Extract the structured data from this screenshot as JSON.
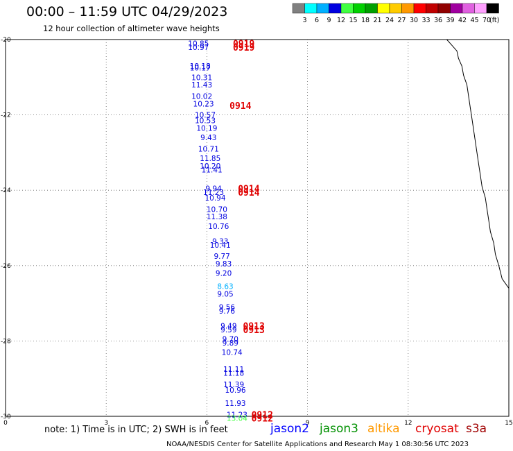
{
  "header": {
    "title": "00:00 – 11:59 UTC 04/29/2023",
    "subtitle": "12 hour collection of altimeter wave heights"
  },
  "footer": {
    "note": "note: 1) Time is in UTC; 2) SWH is in feet",
    "credit": "NOAA/NESDIS Center for Satellite Applications and Research    May  1 08:30:56 UTC 2023"
  },
  "legend": {
    "unit": "(ft)",
    "bins": [
      {
        "label": "3",
        "color": "#808080"
      },
      {
        "label": "6",
        "color": "#00ffff"
      },
      {
        "label": "9",
        "color": "#00b0ff"
      },
      {
        "label": "12",
        "color": "#0000e0"
      },
      {
        "label": "15",
        "color": "#40ff40"
      },
      {
        "label": "18",
        "color": "#00d000"
      },
      {
        "label": "21",
        "color": "#00a000"
      },
      {
        "label": "24",
        "color": "#ffff00"
      },
      {
        "label": "27",
        "color": "#ffcc00"
      },
      {
        "label": "30",
        "color": "#ff9900"
      },
      {
        "label": "33",
        "color": "#ff0000"
      },
      {
        "label": "36",
        "color": "#c00000"
      },
      {
        "label": "39",
        "color": "#900000"
      },
      {
        "label": "42",
        "color": "#a000a0"
      },
      {
        "label": "45",
        "color": "#e060e0"
      },
      {
        "label": "70",
        "color": "#ffa0ff"
      },
      {
        "label": "",
        "color": "#000000"
      }
    ]
  },
  "missions": [
    {
      "name": "jason2",
      "color": "#0000ff"
    },
    {
      "name": "jason3",
      "color": "#009000"
    },
    {
      "name": "altika",
      "color": "#ff9900"
    },
    {
      "name": "cryosat",
      "color": "#e00000"
    },
    {
      "name": "s3a",
      "color": "#a00000"
    }
  ],
  "chart_data": {
    "type": "scatter",
    "x_range": [
      0,
      15
    ],
    "y_range": [
      -30,
      -20
    ],
    "x_ticks": [
      "0",
      "3",
      "6",
      "9",
      "12",
      "15"
    ],
    "y_ticks": [
      "-20",
      "-22",
      "-24",
      "-26",
      "-28",
      "-30"
    ],
    "grid": true,
    "points": [
      {
        "x": 5.75,
        "y": -20.1,
        "label": "10.85",
        "color": "#0000e0"
      },
      {
        "x": 5.75,
        "y": -20.2,
        "label": "10.97",
        "color": "#0000e0"
      },
      {
        "x": 5.8,
        "y": -20.7,
        "label": "10.18",
        "color": "#0000e0"
      },
      {
        "x": 5.8,
        "y": -20.75,
        "label": "10.17",
        "color": "#0000e0"
      },
      {
        "x": 5.85,
        "y": -21.0,
        "label": "10.31",
        "color": "#0000e0"
      },
      {
        "x": 5.85,
        "y": -21.2,
        "label": "11.43",
        "color": "#0000e0"
      },
      {
        "x": 5.85,
        "y": -21.5,
        "label": "10.02",
        "color": "#0000e0"
      },
      {
        "x": 5.9,
        "y": -21.7,
        "label": "10.23",
        "color": "#0000e0"
      },
      {
        "x": 5.95,
        "y": -22.0,
        "label": "10.57",
        "color": "#0000e0"
      },
      {
        "x": 5.95,
        "y": -22.15,
        "label": "10.53",
        "color": "#0000e0"
      },
      {
        "x": 6.0,
        "y": -22.35,
        "label": "10.19",
        "color": "#0000e0"
      },
      {
        "x": 6.05,
        "y": -22.6,
        "label": "9.43",
        "color": "#0000e0"
      },
      {
        "x": 6.05,
        "y": -22.9,
        "label": "10.71",
        "color": "#0000e0"
      },
      {
        "x": 6.1,
        "y": -23.15,
        "label": "11.85",
        "color": "#0000e0"
      },
      {
        "x": 6.1,
        "y": -23.35,
        "label": "10.20",
        "color": "#0000e0"
      },
      {
        "x": 6.15,
        "y": -23.45,
        "label": "11.41",
        "color": "#0000e0"
      },
      {
        "x": 6.2,
        "y": -23.95,
        "label": "9.94",
        "color": "#0000e0"
      },
      {
        "x": 6.2,
        "y": -24.05,
        "label": "11.23",
        "color": "#0000e0"
      },
      {
        "x": 6.25,
        "y": -24.2,
        "label": "10.94",
        "color": "#0000e0"
      },
      {
        "x": 6.3,
        "y": -24.5,
        "label": "10.70",
        "color": "#0000e0"
      },
      {
        "x": 6.3,
        "y": -24.7,
        "label": "11.38",
        "color": "#0000e0"
      },
      {
        "x": 6.35,
        "y": -24.95,
        "label": "10.76",
        "color": "#0000e0"
      },
      {
        "x": 6.4,
        "y": -25.35,
        "label": "9.33",
        "color": "#0000e0"
      },
      {
        "x": 6.4,
        "y": -25.45,
        "label": "10.41",
        "color": "#0000e0"
      },
      {
        "x": 6.45,
        "y": -25.75,
        "label": "9.77",
        "color": "#0000e0"
      },
      {
        "x": 6.5,
        "y": -25.95,
        "label": "9.83",
        "color": "#0000e0"
      },
      {
        "x": 6.5,
        "y": -26.2,
        "label": "9.20",
        "color": "#0000e0"
      },
      {
        "x": 6.55,
        "y": -26.55,
        "label": "8.63",
        "color": "#00b0ff"
      },
      {
        "x": 6.55,
        "y": -26.75,
        "label": "9.05",
        "color": "#0000e0"
      },
      {
        "x": 6.6,
        "y": -27.1,
        "label": "9.56",
        "color": "#0000e0"
      },
      {
        "x": 6.6,
        "y": -27.2,
        "label": "9.76",
        "color": "#0000e0"
      },
      {
        "x": 6.65,
        "y": -27.6,
        "label": "9.49",
        "color": "#0000e0"
      },
      {
        "x": 6.65,
        "y": -27.7,
        "label": "9.59",
        "color": "#0000e0"
      },
      {
        "x": 6.7,
        "y": -27.95,
        "label": "9.70",
        "color": "#0000e0"
      },
      {
        "x": 6.7,
        "y": -28.05,
        "label": "9.89",
        "color": "#0000e0"
      },
      {
        "x": 6.75,
        "y": -28.3,
        "label": "10.74",
        "color": "#0000e0"
      },
      {
        "x": 6.8,
        "y": -28.75,
        "label": "11.11",
        "color": "#0000e0"
      },
      {
        "x": 6.8,
        "y": -28.85,
        "label": "11.18",
        "color": "#0000e0"
      },
      {
        "x": 6.8,
        "y": -29.15,
        "label": "11.39",
        "color": "#0000e0"
      },
      {
        "x": 6.85,
        "y": -29.3,
        "label": "10.96",
        "color": "#0000e0"
      },
      {
        "x": 6.85,
        "y": -29.65,
        "label": "11.93",
        "color": "#0000e0"
      },
      {
        "x": 6.9,
        "y": -29.95,
        "label": "11.23",
        "color": "#0000e0"
      },
      {
        "x": 6.9,
        "y": -30.05,
        "label": "13.04",
        "color": "#40ff40"
      }
    ],
    "time_labels": [
      {
        "x": 7.1,
        "y": -20.1,
        "label": "0919",
        "color": "#e00000"
      },
      {
        "x": 7.1,
        "y": -20.2,
        "label": "0919",
        "color": "#e00000"
      },
      {
        "x": 7.0,
        "y": -21.75,
        "label": "0914",
        "color": "#e00000"
      },
      {
        "x": 7.25,
        "y": -23.95,
        "label": "0914",
        "color": "#e00000"
      },
      {
        "x": 7.25,
        "y": -24.05,
        "label": "0914",
        "color": "#e00000"
      },
      {
        "x": 7.4,
        "y": -27.6,
        "label": "0913",
        "color": "#e00000"
      },
      {
        "x": 7.4,
        "y": -27.7,
        "label": "0913",
        "color": "#e00000"
      },
      {
        "x": 7.65,
        "y": -29.95,
        "label": "0912",
        "color": "#e00000"
      },
      {
        "x": 7.65,
        "y": -30.05,
        "label": "0912",
        "color": "#e00000"
      }
    ],
    "coastline": [
      [
        13.15,
        -20.0
      ],
      [
        13.3,
        -20.15
      ],
      [
        13.45,
        -20.3
      ],
      [
        13.5,
        -20.5
      ],
      [
        13.6,
        -20.7
      ],
      [
        13.65,
        -20.95
      ],
      [
        13.75,
        -21.2
      ],
      [
        13.8,
        -21.5
      ],
      [
        13.85,
        -21.8
      ],
      [
        13.9,
        -22.1
      ],
      [
        13.95,
        -22.4
      ],
      [
        14.0,
        -22.7
      ],
      [
        14.05,
        -23.0
      ],
      [
        14.1,
        -23.3
      ],
      [
        14.15,
        -23.6
      ],
      [
        14.2,
        -23.9
      ],
      [
        14.3,
        -24.2
      ],
      [
        14.35,
        -24.5
      ],
      [
        14.4,
        -24.8
      ],
      [
        14.45,
        -25.1
      ],
      [
        14.55,
        -25.4
      ],
      [
        14.6,
        -25.7
      ],
      [
        14.7,
        -26.0
      ],
      [
        14.8,
        -26.35
      ],
      [
        15.0,
        -26.6
      ]
    ]
  }
}
